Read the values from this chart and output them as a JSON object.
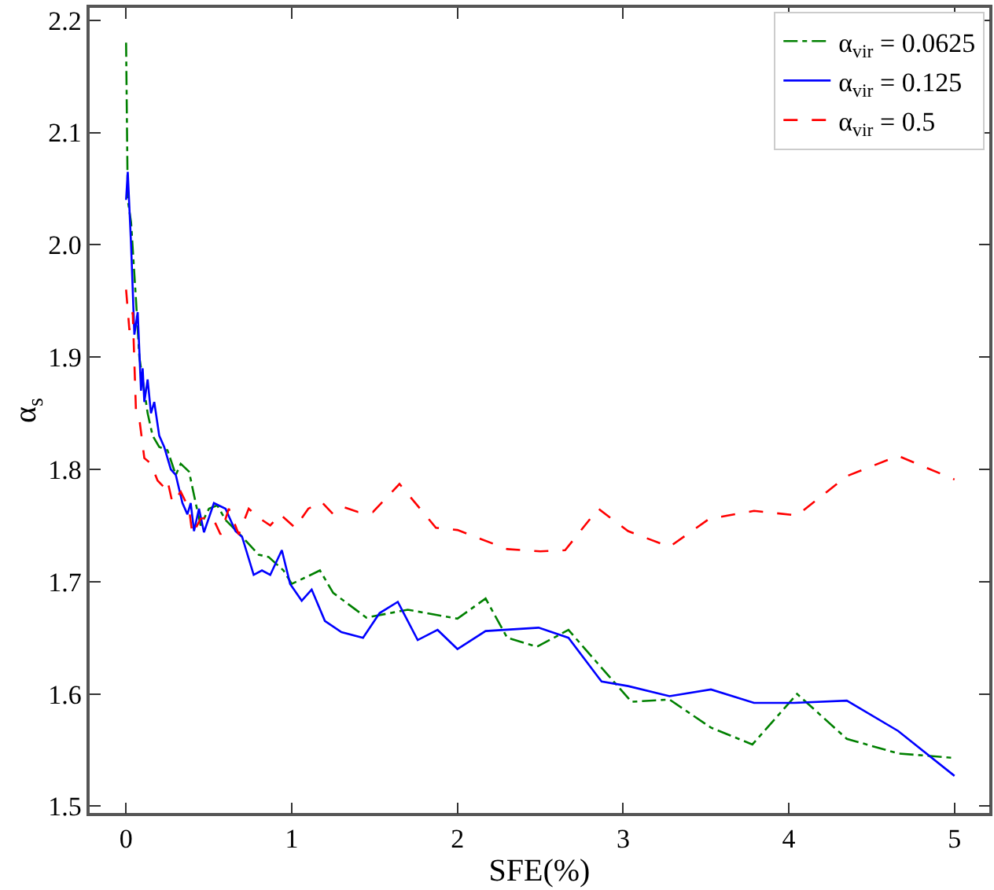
{
  "chart_data": {
    "type": "line",
    "xlabel": "SFE(%)",
    "ylabel": "α$_{s}$",
    "xlim": [
      -0.22,
      5.21
    ],
    "xticks": [
      0,
      1,
      2,
      3,
      4,
      5
    ],
    "ylim": [
      1.494,
      2.211
    ],
    "yticks": [
      1.5,
      1.6,
      1.7,
      1.8,
      1.9,
      {
        "value": 2.0,
        "label": "2.0"
      },
      2.1,
      2.2
    ],
    "grid": false,
    "legend": "top right",
    "marker": "none",
    "series": [
      {
        "name": "α$_{vir}$ = 0.0625",
        "color": "#008000",
        "line_style": "dashdot",
        "x": [
          0,
          0.01,
          0.03,
          0.06,
          0.08,
          0.1,
          0.13,
          0.16,
          0.2,
          0.25,
          0.3,
          0.33,
          0.38,
          0.42,
          0.45,
          0.5,
          0.55,
          0.6,
          0.7,
          0.8,
          0.86,
          0.95,
          1.0,
          1.1,
          1.17,
          1.25,
          1.45,
          1.7,
          2.0,
          2.17,
          2.3,
          2.48,
          2.67,
          2.83,
          3.05,
          3.28,
          3.53,
          3.78,
          4.05,
          4.35,
          4.66,
          5.0
        ],
        "values": [
          2.18,
          2.04,
          2.02,
          1.95,
          1.9,
          1.88,
          1.85,
          1.83,
          1.82,
          1.817,
          1.795,
          1.805,
          1.798,
          1.77,
          1.75,
          1.765,
          1.768,
          1.755,
          1.74,
          1.724,
          1.722,
          1.71,
          1.698,
          1.705,
          1.71,
          1.69,
          1.668,
          1.675,
          1.667,
          1.685,
          1.65,
          1.642,
          1.657,
          1.63,
          1.593,
          1.595,
          1.57,
          1.555,
          1.6,
          1.56,
          1.547,
          1.543
        ]
      },
      {
        "name": "α$_{vir}$ = 0.125",
        "color": "#0000ff",
        "line_style": "solid",
        "x": [
          0,
          0.01,
          0.03,
          0.05,
          0.07,
          0.09,
          0.1,
          0.11,
          0.13,
          0.15,
          0.17,
          0.2,
          0.23,
          0.27,
          0.3,
          0.34,
          0.37,
          0.39,
          0.41,
          0.44,
          0.47,
          0.53,
          0.6,
          0.66,
          0.7,
          0.77,
          0.82,
          0.87,
          0.94,
          0.99,
          1.06,
          1.12,
          1.2,
          1.3,
          1.43,
          1.53,
          1.64,
          1.76,
          1.88,
          2.0,
          2.17,
          2.49,
          2.67,
          2.87,
          3.03,
          3.28,
          3.53,
          3.79,
          4.03,
          4.35,
          4.66,
          5.0
        ],
        "values": [
          2.04,
          2.065,
          2.0,
          1.92,
          1.94,
          1.87,
          1.89,
          1.86,
          1.88,
          1.85,
          1.86,
          1.83,
          1.82,
          1.8,
          1.795,
          1.77,
          1.76,
          1.77,
          1.745,
          1.765,
          1.744,
          1.77,
          1.765,
          1.745,
          1.74,
          1.706,
          1.71,
          1.706,
          1.728,
          1.698,
          1.683,
          1.693,
          1.665,
          1.655,
          1.65,
          1.672,
          1.682,
          1.648,
          1.657,
          1.64,
          1.656,
          1.659,
          1.65,
          1.611,
          1.607,
          1.598,
          1.604,
          1.592,
          1.592,
          1.594,
          1.567,
          1.527
        ]
      },
      {
        "name": "α$_{vir}$ = 0.5",
        "color": "#ff0000",
        "line_style": "dashed",
        "x": [
          0,
          0.02,
          0.04,
          0.06,
          0.08,
          0.11,
          0.15,
          0.19,
          0.23,
          0.25,
          0.28,
          0.33,
          0.38,
          0.4,
          0.45,
          0.52,
          0.57,
          0.62,
          0.68,
          0.74,
          0.8,
          0.87,
          0.93,
          1.02,
          1.1,
          1.18,
          1.25,
          1.32,
          1.4,
          1.49,
          1.65,
          1.87,
          2.0,
          2.3,
          2.5,
          2.65,
          2.85,
          3.03,
          3.28,
          3.52,
          3.79,
          4.05,
          4.35,
          4.66,
          5.0
        ],
        "values": [
          1.96,
          1.924,
          1.94,
          1.85,
          1.845,
          1.81,
          1.805,
          1.79,
          1.784,
          1.79,
          1.77,
          1.78,
          1.765,
          1.742,
          1.756,
          1.758,
          1.742,
          1.765,
          1.742,
          1.765,
          1.757,
          1.75,
          1.76,
          1.748,
          1.765,
          1.771,
          1.76,
          1.766,
          1.762,
          1.762,
          1.787,
          1.748,
          1.746,
          1.729,
          1.727,
          1.728,
          1.765,
          1.745,
          1.731,
          1.756,
          1.763,
          1.759,
          1.794,
          1.812,
          1.791
        ]
      }
    ]
  }
}
